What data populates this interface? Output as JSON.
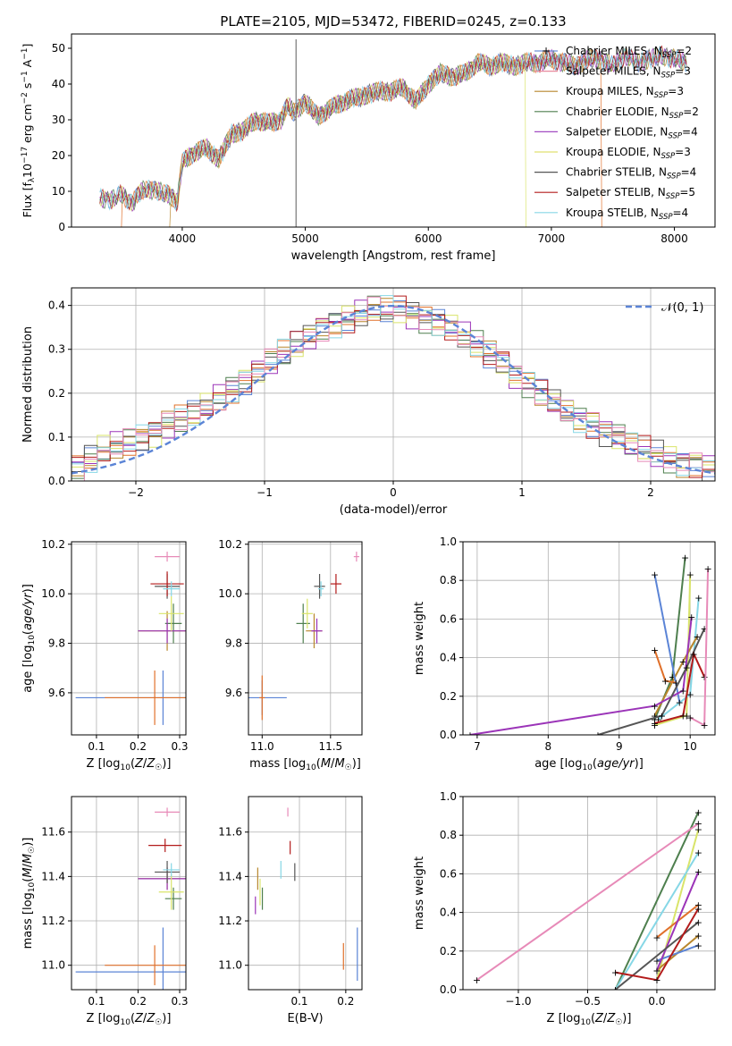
{
  "figure": {
    "title": "PLATE=2105, MJD=53472, FIBERID=0245, z=0.133"
  },
  "colors": {
    "model_colors": [
      "#5b84d6",
      "#e0702a",
      "#b8862c",
      "#4e7f4e",
      "#9b34b8",
      "#d9e46a",
      "#555555",
      "#b31b1b",
      "#86d7e6"
    ],
    "legend_colors": [
      "#6f8fd8",
      "#e88a9e",
      "#b8862c",
      "#4e7f4e",
      "#a24cc2",
      "#e0e070",
      "#555555",
      "#b31b1b",
      "#86d7e6"
    ],
    "extra_pink": "#e78ab8",
    "normal_curve": "#5b84d6"
  },
  "chart_data": [
    {
      "type": "line",
      "title": "PLATE=2105, MJD=53472, FIBERID=0245, z=0.133",
      "xlabel": "wavelength [Angstrom, rest frame]",
      "ylabel": "Flux [f$_\\lambda$10$^{-17}$ erg cm$^{-2}$ s$^{-1}$ A$^{-1}$]",
      "xlim": [
        3100,
        8330
      ],
      "ylim": [
        0,
        54
      ],
      "xticks": [
        4000,
        5000,
        6000,
        7000,
        8000
      ],
      "yticks": [
        0,
        10,
        20,
        30,
        40,
        50
      ],
      "legend_placement": "top-right",
      "legend": [
        {
          "label": "Chabrier MILES, N_SSP=2",
          "base": "Chabrier MILES, N",
          "sub": "SSP",
          "suffix": "=2"
        },
        {
          "label": "Salpeter MILES, N_SSP=3",
          "base": "Salpeter MILES, N",
          "sub": "SSP",
          "suffix": "=3"
        },
        {
          "label": "Kroupa MILES, N_SSP=3",
          "base": "Kroupa MILES, N",
          "sub": "SSP",
          "suffix": "=3"
        },
        {
          "label": "Chabrier ELODIE, N_SSP=2",
          "base": "Chabrier ELODIE, N",
          "sub": "SSP",
          "suffix": "=2"
        },
        {
          "label": "Salpeter ELODIE, N_SSP=4",
          "base": "Salpeter ELODIE, N",
          "sub": "SSP",
          "suffix": "=4"
        },
        {
          "label": "Kroupa ELODIE, N_SSP=3",
          "base": "Kroupa ELODIE, N",
          "sub": "SSP",
          "suffix": "=3"
        },
        {
          "label": "Chabrier STELIB, N_SSP=4",
          "base": "Chabrier STELIB, N",
          "sub": "SSP",
          "suffix": "=4"
        },
        {
          "label": "Salpeter STELIB, N_SSP=5",
          "base": "Salpeter STELIB, N",
          "sub": "SSP",
          "suffix": "=5"
        },
        {
          "label": "Kroupa STELIB, N_SSP=4",
          "base": "Kroupa STELIB, N",
          "sub": "SSP",
          "suffix": "=4"
        }
      ],
      "spectrum_x": [
        3330,
        3400,
        3500,
        3600,
        3700,
        3800,
        3900,
        3960,
        4000,
        4100,
        4200,
        4300,
        4400,
        4500,
        4600,
        4700,
        4800,
        4860,
        4900,
        5000,
        5100,
        5200,
        5300,
        5400,
        5500,
        5600,
        5700,
        5800,
        5900,
        6000,
        6100,
        6200,
        6300,
        6400,
        6500,
        6600,
        6700,
        6800,
        6900,
        7000,
        7100,
        7200,
        7300,
        7400,
        7500,
        7600,
        7700,
        7800,
        7900,
        8000,
        8100
      ],
      "spectrum_y": [
        8,
        7.5,
        9,
        7,
        11,
        10,
        9,
        7,
        18,
        21,
        22,
        19,
        26,
        27,
        30,
        29,
        30,
        34,
        32,
        35,
        31,
        33,
        35,
        36,
        37,
        38,
        38,
        39,
        35,
        40,
        43,
        42,
        43,
        46,
        45,
        46,
        45,
        46,
        46,
        47,
        46,
        45,
        47,
        47,
        45,
        48,
        46,
        47,
        48,
        47,
        46
      ],
      "spike": {
        "x": 4925,
        "y": 52.5
      },
      "model_cutoffs": [
        {
          "x": 3510,
          "side": "left"
        },
        {
          "x": 3905,
          "side": "left"
        },
        {
          "x": 6790,
          "side": "right"
        },
        {
          "x": 7405,
          "side": "right"
        }
      ]
    },
    {
      "type": "line",
      "xlabel": "(data-model)/error",
      "ylabel": "Normed distribution",
      "xlim": [
        -2.5,
        2.5
      ],
      "ylim": [
        0,
        0.44
      ],
      "xticks": [
        -2,
        -1,
        0,
        1,
        2
      ],
      "yticks": [
        0.0,
        0.1,
        0.2,
        0.3,
        0.4
      ],
      "grid": true,
      "legend_placement": "top-right",
      "normal_label": "𝒩(0, 1)",
      "bin_edges_start": -2.5,
      "bin_width": 0.1,
      "reference_hist": [
        0.03,
        0.05,
        0.07,
        0.08,
        0.09,
        0.1,
        0.11,
        0.13,
        0.14,
        0.15,
        0.17,
        0.19,
        0.21,
        0.23,
        0.25,
        0.27,
        0.29,
        0.31,
        0.33,
        0.35,
        0.36,
        0.37,
        0.38,
        0.39,
        0.39,
        0.39,
        0.38,
        0.37,
        0.36,
        0.35,
        0.33,
        0.31,
        0.29,
        0.27,
        0.24,
        0.22,
        0.2,
        0.18,
        0.16,
        0.14,
        0.13,
        0.11,
        0.1,
        0.08,
        0.07,
        0.06,
        0.05,
        0.04,
        0.04,
        0.03
      ]
    },
    {
      "type": "scatter",
      "xlabel": "Z [log10(Z/Z☉)]",
      "ylabel": "age [log10(age/yr)]",
      "xlim": [
        0.04,
        0.315
      ],
      "ylim": [
        9.43,
        10.21
      ],
      "xticks": [
        0.1,
        0.2,
        0.3
      ],
      "yticks": [
        9.6,
        9.8,
        10.0,
        10.2
      ],
      "grid": true,
      "points": [
        {
          "x": 0.26,
          "y": 9.58,
          "xerr": 0.21,
          "yerr": 0.11
        },
        {
          "x": 0.24,
          "y": 9.58,
          "xerr": 0.12,
          "yerr": 0.11
        },
        {
          "x": 0.27,
          "y": 9.85,
          "xerr": 0.07,
          "yerr": 0.08
        },
        {
          "x": 0.285,
          "y": 9.88,
          "xerr": 0.02,
          "yerr": 0.08
        },
        {
          "x": 0.27,
          "y": 9.85,
          "xerr": 0.07,
          "yerr": 0.05
        },
        {
          "x": 0.28,
          "y": 9.92,
          "xerr": 0.03,
          "yerr": 0.07
        },
        {
          "x": 0.27,
          "y": 10.03,
          "xerr": 0.03,
          "yerr": 0.05
        },
        {
          "x": 0.27,
          "y": 10.04,
          "xerr": 0.04,
          "yerr": 0.05
        },
        {
          "x": 0.28,
          "y": 10.02,
          "xerr": 0.02,
          "yerr": 0.03
        },
        {
          "x": 0.27,
          "y": 10.15,
          "xerr": 0.03,
          "yerr": 0.02
        }
      ]
    },
    {
      "type": "scatter",
      "xlabel": "mass [log10(M/M☉)]",
      "xlim": [
        10.9,
        11.73
      ],
      "ylim": [
        9.43,
        10.21
      ],
      "xticks": [
        11.0,
        11.5
      ],
      "yticks": [
        9.6,
        9.8,
        10.0,
        10.2
      ],
      "grid": true,
      "points": [
        {
          "x": 11.0,
          "y": 9.58,
          "xerr": 0.18,
          "yerr": 0.07
        },
        {
          "x": 11.0,
          "y": 9.58,
          "xerr": 0.02,
          "yerr": 0.09
        },
        {
          "x": 11.38,
          "y": 9.85,
          "xerr": 0.06,
          "yerr": 0.07
        },
        {
          "x": 11.3,
          "y": 9.88,
          "xerr": 0.05,
          "yerr": 0.08
        },
        {
          "x": 11.4,
          "y": 9.85,
          "xerr": 0.04,
          "yerr": 0.05
        },
        {
          "x": 11.33,
          "y": 9.92,
          "xerr": 0.04,
          "yerr": 0.06
        },
        {
          "x": 11.42,
          "y": 10.03,
          "xerr": 0.04,
          "yerr": 0.05
        },
        {
          "x": 11.54,
          "y": 10.04,
          "xerr": 0.04,
          "yerr": 0.04
        },
        {
          "x": 11.43,
          "y": 10.02,
          "xerr": 0.02,
          "yerr": 0.03
        },
        {
          "x": 11.69,
          "y": 10.15,
          "xerr": 0.02,
          "yerr": 0.02
        }
      ]
    },
    {
      "type": "line",
      "xlabel": "age [log10(age/yr)]",
      "ylabel": "mass weight",
      "xlim": [
        6.8,
        10.35
      ],
      "ylim": [
        0,
        1
      ],
      "xticks": [
        7,
        8,
        9,
        10
      ],
      "yticks": [
        0.0,
        0.2,
        0.4,
        0.6,
        0.8,
        1.0
      ],
      "grid": true,
      "series": [
        {
          "x": [
            9.5,
            9.85
          ],
          "y": [
            0.83,
            0.17
          ]
        },
        {
          "x": [
            9.5,
            9.65,
            9.8
          ],
          "y": [
            0.44,
            0.28,
            0.27
          ]
        },
        {
          "x": [
            9.5,
            9.9,
            10.1
          ],
          "y": [
            0.1,
            0.38,
            0.51
          ]
        },
        {
          "x": [
            9.5,
            9.75,
            9.93
          ],
          "y": [
            0.08,
            0.3,
            0.92
          ]
        },
        {
          "x": [
            6.9,
            9.5,
            9.9,
            10.02
          ],
          "y": [
            0.0,
            0.15,
            0.23,
            0.61
          ]
        },
        {
          "x": [
            9.5,
            9.95,
            10.0
          ],
          "y": [
            0.05,
            0.1,
            0.83
          ]
        },
        {
          "x": [
            8.7,
            9.6,
            9.95,
            10.2
          ],
          "y": [
            0.0,
            0.1,
            0.35,
            0.55
          ]
        },
        {
          "x": [
            9.5,
            9.9,
            10.05,
            10.2
          ],
          "y": [
            0.06,
            0.1,
            0.42,
            0.3
          ]
        },
        {
          "x": [
            9.55,
            10.0,
            10.12
          ],
          "y": [
            0.08,
            0.21,
            0.71
          ]
        },
        {
          "x": [
            10.0,
            10.2,
            10.25
          ],
          "y": [
            0.09,
            0.05,
            0.86
          ]
        }
      ]
    },
    {
      "type": "scatter",
      "xlabel": "Z [log10(Z/Z☉)]",
      "ylabel": "mass [log10(M/M☉)]",
      "xlim": [
        0.04,
        0.315
      ],
      "ylim": [
        10.89,
        11.76
      ],
      "xticks": [
        0.1,
        0.2,
        0.3
      ],
      "yticks": [
        11.0,
        11.2,
        11.4,
        11.6
      ],
      "grid": true,
      "points": [
        {
          "x": 0.26,
          "y": 10.97,
          "xerr": 0.21,
          "yerr": 0.2
        },
        {
          "x": 0.24,
          "y": 11.0,
          "xerr": 0.12,
          "yerr": 0.09
        },
        {
          "x": 0.27,
          "y": 11.39,
          "xerr": 0.07,
          "yerr": 0.05
        },
        {
          "x": 0.285,
          "y": 11.3,
          "xerr": 0.02,
          "yerr": 0.05
        },
        {
          "x": 0.27,
          "y": 11.39,
          "xerr": 0.07,
          "yerr": 0.05
        },
        {
          "x": 0.28,
          "y": 11.33,
          "xerr": 0.03,
          "yerr": 0.08
        },
        {
          "x": 0.27,
          "y": 11.42,
          "xerr": 0.03,
          "yerr": 0.05
        },
        {
          "x": 0.265,
          "y": 11.54,
          "xerr": 0.04,
          "yerr": 0.03
        },
        {
          "x": 0.28,
          "y": 11.43,
          "xerr": 0.02,
          "yerr": 0.03
        },
        {
          "x": 0.27,
          "y": 11.69,
          "xerr": 0.03,
          "yerr": 0.02
        }
      ]
    },
    {
      "type": "scatter",
      "xlabel": "E(B-V)",
      "xlim": [
        -0.01,
        0.235
      ],
      "ylim": [
        10.89,
        11.76
      ],
      "xticks": [
        0.1,
        0.2
      ],
      "yticks": [
        11.0,
        11.2,
        11.4,
        11.6
      ],
      "grid": true,
      "points": [
        {
          "x": 0.225,
          "y": 11.05,
          "xerr": 0.0,
          "yerr": 0.12
        },
        {
          "x": 0.195,
          "y": 11.04,
          "xerr": 0.0,
          "yerr": 0.06
        },
        {
          "x": 0.01,
          "y": 11.39,
          "xerr": 0.0,
          "yerr": 0.05
        },
        {
          "x": 0.02,
          "y": 11.3,
          "xerr": 0.0,
          "yerr": 0.05
        },
        {
          "x": 0.005,
          "y": 11.27,
          "xerr": 0.0,
          "yerr": 0.04
        },
        {
          "x": 0.015,
          "y": 11.33,
          "xerr": 0.0,
          "yerr": 0.06
        },
        {
          "x": 0.09,
          "y": 11.42,
          "xerr": 0.0,
          "yerr": 0.04
        },
        {
          "x": 0.08,
          "y": 11.53,
          "xerr": 0.0,
          "yerr": 0.03
        },
        {
          "x": 0.06,
          "y": 11.43,
          "xerr": 0.0,
          "yerr": 0.04
        },
        {
          "x": 0.075,
          "y": 11.69,
          "xerr": 0.0,
          "yerr": 0.02
        }
      ]
    },
    {
      "type": "line",
      "xlabel": "Z [log10(Z/Z☉)]",
      "ylabel": "mass weight",
      "xlim": [
        -1.4,
        0.42
      ],
      "ylim": [
        0,
        1
      ],
      "xticks": [
        -1.0,
        -0.5,
        0.0
      ],
      "yticks": [
        0.0,
        0.2,
        0.4,
        0.6,
        0.8,
        1.0
      ],
      "grid": true,
      "series": [
        {
          "x": [
            0.0,
            0.3
          ],
          "y": [
            0.15,
            0.23
          ]
        },
        {
          "x": [
            0.0,
            0.3
          ],
          "y": [
            0.27,
            0.44
          ]
        },
        {
          "x": [
            0.0,
            0.3
          ],
          "y": [
            0.1,
            0.28
          ]
        },
        {
          "x": [
            -0.3,
            0.3
          ],
          "y": [
            0.0,
            0.92
          ]
        },
        {
          "x": [
            0.0,
            0.3
          ],
          "y": [
            0.1,
            0.61
          ]
        },
        {
          "x": [
            0.0,
            0.3
          ],
          "y": [
            0.05,
            0.83
          ]
        },
        {
          "x": [
            -0.3,
            0.3
          ],
          "y": [
            0.0,
            0.35
          ]
        },
        {
          "x": [
            -0.3,
            0.0,
            0.3
          ],
          "y": [
            0.09,
            0.05,
            0.42
          ]
        },
        {
          "x": [
            -0.3,
            0.3
          ],
          "y": [
            0.0,
            0.71
          ]
        },
        {
          "x": [
            -1.3,
            0.3
          ],
          "y": [
            0.05,
            0.86
          ]
        }
      ]
    }
  ]
}
